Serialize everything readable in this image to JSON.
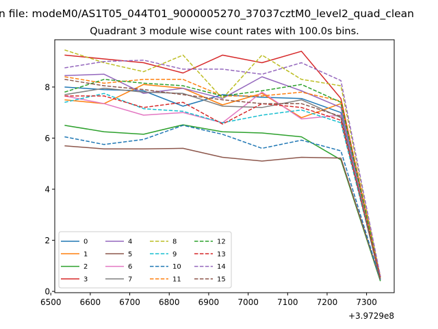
{
  "figure": {
    "suptitle": "n file: modeM0/AS1T05_044T01_9000005270_37037cztM0_level2_quad_clean",
    "title": "Quadrant 3 module wise count rates with 100.0s bins."
  },
  "chart_data": {
    "type": "line",
    "title": "Quadrant 3 module wise count rates with 100.0s bins.",
    "xlabel": "",
    "ylabel": "",
    "x_offset_label": "+3.9729e8",
    "x": [
      6535,
      6635,
      6735,
      6835,
      6935,
      7035,
      7135,
      7235,
      7335
    ],
    "xlim": [
      6510,
      7370
    ],
    "ylim": [
      -0.05,
      9.85
    ],
    "x_ticks": [
      6500,
      6600,
      6700,
      6800,
      6900,
      7000,
      7100,
      7200,
      7300
    ],
    "x_tick_labels": [
      "6500",
      "6600",
      "6700",
      "6800",
      "6900",
      "7000",
      "7100",
      "7200",
      "7300"
    ],
    "y_ticks": [
      0,
      2,
      4,
      6,
      8
    ],
    "y_tick_labels": [
      "0",
      "2",
      "4",
      "6",
      "8"
    ],
    "grid": false,
    "legend": {
      "placement": "lower-left",
      "columns": 4
    },
    "series": [
      {
        "name": "0",
        "color": "#1f77b4",
        "dash": "solid",
        "values": [
          8.0,
          7.9,
          7.85,
          7.25,
          7.7,
          7.6,
          7.55,
          7.0,
          0.45
        ]
      },
      {
        "name": "1",
        "color": "#ff7f0e",
        "dash": "solid",
        "values": [
          7.5,
          7.35,
          8.1,
          7.95,
          7.3,
          7.75,
          6.8,
          7.35,
          0.5
        ]
      },
      {
        "name": "2",
        "color": "#2ca02c",
        "dash": "solid",
        "values": [
          6.5,
          6.25,
          6.15,
          6.52,
          6.25,
          6.2,
          6.05,
          5.15,
          0.4
        ]
      },
      {
        "name": "3",
        "color": "#d62728",
        "dash": "solid",
        "values": [
          9.25,
          9.1,
          8.95,
          8.55,
          9.25,
          8.95,
          9.4,
          7.55,
          0.55
        ]
      },
      {
        "name": "4",
        "color": "#9467bd",
        "dash": "solid",
        "values": [
          8.45,
          8.5,
          7.75,
          7.95,
          7.55,
          8.4,
          7.85,
          7.2,
          0.55
        ]
      },
      {
        "name": "5",
        "color": "#8c564b",
        "dash": "solid",
        "values": [
          5.7,
          5.58,
          5.58,
          5.6,
          5.25,
          5.1,
          5.25,
          5.22,
          0.45
        ]
      },
      {
        "name": "6",
        "color": "#e377c2",
        "dash": "solid",
        "values": [
          7.65,
          7.35,
          6.9,
          7.0,
          6.6,
          7.8,
          6.75,
          6.9,
          0.5
        ]
      },
      {
        "name": "7",
        "color": "#7f7f7f",
        "dash": "solid",
        "values": [
          7.7,
          7.95,
          7.8,
          7.75,
          7.25,
          7.2,
          7.5,
          6.8,
          0.45
        ]
      },
      {
        "name": "8",
        "color": "#bcbd22",
        "dash": "dashed",
        "values": [
          9.45,
          8.95,
          8.6,
          9.25,
          7.55,
          9.25,
          8.3,
          8.05,
          0.55
        ]
      },
      {
        "name": "9",
        "color": "#17becf",
        "dash": "dashed",
        "values": [
          7.4,
          7.75,
          7.15,
          7.05,
          6.6,
          6.9,
          7.1,
          6.6,
          0.5
        ]
      },
      {
        "name": "10",
        "color": "#1f77b4",
        "dash": "dashed",
        "values": [
          6.05,
          5.75,
          5.95,
          6.5,
          6.15,
          5.6,
          5.92,
          5.5,
          0.45
        ]
      },
      {
        "name": "11",
        "color": "#ff7f0e",
        "dash": "dashed",
        "values": [
          8.4,
          8.15,
          8.3,
          8.3,
          7.65,
          7.65,
          7.8,
          7.45,
          0.55
        ]
      },
      {
        "name": "12",
        "color": "#2ca02c",
        "dash": "dashed",
        "values": [
          7.8,
          8.3,
          8.15,
          8.05,
          7.65,
          7.85,
          8.1,
          7.4,
          0.5
        ]
      },
      {
        "name": "13",
        "color": "#d62728",
        "dash": "dashed",
        "values": [
          7.65,
          7.65,
          7.2,
          7.4,
          6.55,
          7.35,
          7.2,
          6.7,
          0.55
        ]
      },
      {
        "name": "14",
        "color": "#9467bd",
        "dash": "dashed",
        "values": [
          8.75,
          9.0,
          9.05,
          8.7,
          8.7,
          8.5,
          8.95,
          8.25,
          0.6
        ]
      },
      {
        "name": "15",
        "color": "#8c564b",
        "dash": "dashed",
        "values": [
          8.3,
          8.05,
          7.9,
          7.7,
          7.5,
          7.35,
          7.35,
          6.85,
          0.45
        ]
      }
    ]
  }
}
